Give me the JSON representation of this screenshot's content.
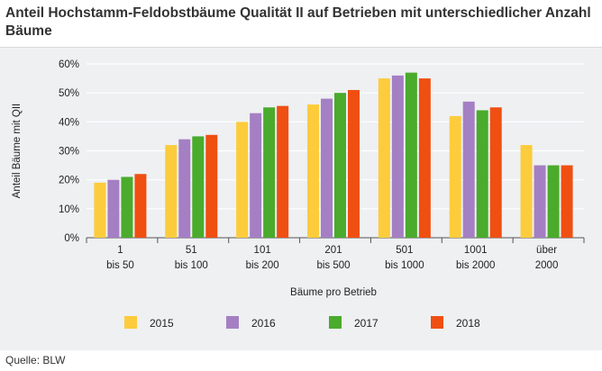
{
  "chart_data": {
    "type": "bar",
    "title": "Anteil Hochstamm-Feldobstbäume Qualität II auf Betrieben mit unterschiedlicher Anzahl Bäume",
    "xlabel": "Bäume pro Betrieb",
    "ylabel": "Anteil Bäume mit QII",
    "ylim": [
      0,
      60
    ],
    "yticks": [
      "0%",
      "10%",
      "20%",
      "30%",
      "40%",
      "50%",
      "60%"
    ],
    "categories": [
      [
        "1",
        "bis 50"
      ],
      [
        "51",
        "bis 100"
      ],
      [
        "101",
        "bis 200"
      ],
      [
        "201",
        "bis 500"
      ],
      [
        "501",
        "bis 1000"
      ],
      [
        "1001",
        "bis 2000"
      ],
      [
        "über",
        "2000"
      ]
    ],
    "series": [
      {
        "name": "2015",
        "color": "#fccc3c",
        "values": [
          19,
          32,
          40,
          46,
          55,
          42,
          32
        ]
      },
      {
        "name": "2016",
        "color": "#a57fc3",
        "values": [
          20,
          34,
          43,
          48,
          56,
          47,
          25
        ]
      },
      {
        "name": "2017",
        "color": "#4aab2c",
        "values": [
          21,
          35,
          45,
          50,
          57,
          44,
          25
        ]
      },
      {
        "name": "2018",
        "color": "#f04f12",
        "values": [
          22,
          35.5,
          45.5,
          51,
          55,
          45,
          25
        ]
      }
    ],
    "legend_position": "bottom"
  },
  "source": "Quelle: BLW"
}
